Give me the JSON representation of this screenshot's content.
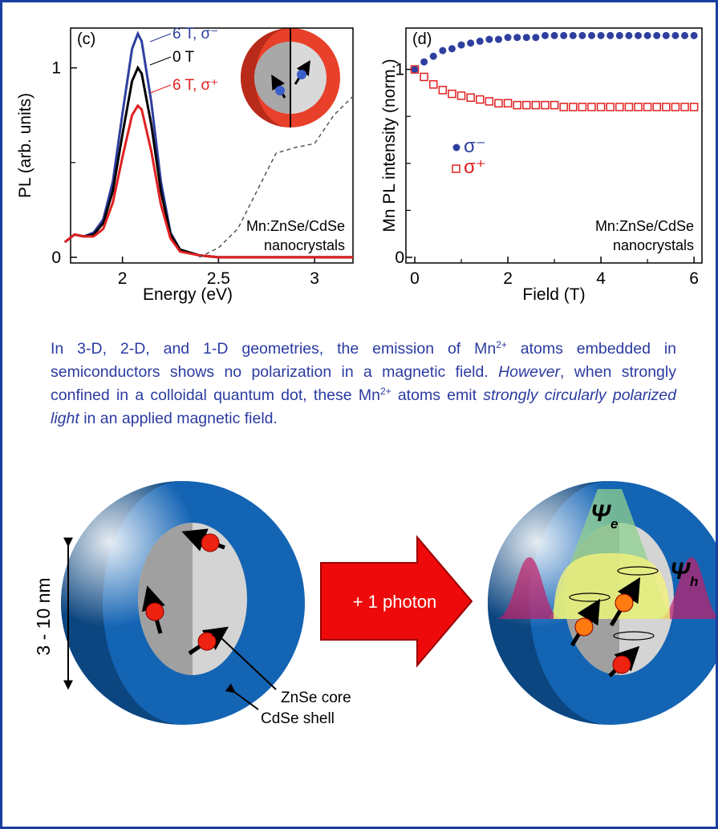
{
  "chart_data": [
    {
      "type": "line",
      "panel": "(c)",
      "x_label": "Energy (eV)",
      "y_label": "PL (arb. units)",
      "annotation": [
        "Mn:ZnSe/CdSe",
        "nanocrystals"
      ],
      "x": [
        1.7,
        1.75,
        1.8,
        1.85,
        1.9,
        1.95,
        2.0,
        2.05,
        2.08,
        2.1,
        2.15,
        2.2,
        2.25,
        2.3,
        2.4,
        2.5,
        2.6,
        2.7,
        2.8,
        2.9,
        3.0,
        3.1,
        3.2
      ],
      "series": [
        {
          "name": "6 T, σ⁻",
          "color": "#2e3f9e",
          "values": [
            0.08,
            0.12,
            0.11,
            0.13,
            0.2,
            0.4,
            0.76,
            1.1,
            1.18,
            1.14,
            0.82,
            0.4,
            0.13,
            0.04,
            0.01,
            0,
            0,
            0,
            0,
            0,
            0,
            0,
            0
          ]
        },
        {
          "name": "0 T",
          "color": "#000000",
          "values": [
            0.08,
            0.12,
            0.11,
            0.12,
            0.18,
            0.35,
            0.65,
            0.93,
            1.0,
            0.97,
            0.7,
            0.35,
            0.12,
            0.04,
            0.01,
            0,
            0,
            0,
            0,
            0,
            0,
            0,
            0
          ]
        },
        {
          "name": "6 T, σ⁺",
          "color": "#e02020",
          "values": [
            0.08,
            0.12,
            0.11,
            0.11,
            0.15,
            0.29,
            0.53,
            0.75,
            0.8,
            0.78,
            0.56,
            0.28,
            0.1,
            0.03,
            0.01,
            0,
            0,
            0,
            0,
            0,
            0,
            0,
            0
          ]
        },
        {
          "color": "#555555",
          "dashed": true,
          "values": [
            null,
            null,
            null,
            null,
            null,
            null,
            null,
            null,
            null,
            null,
            null,
            null,
            null,
            null,
            0,
            0.05,
            0.15,
            0.35,
            0.55,
            0.58,
            0.6,
            0.75,
            0.85
          ]
        }
      ],
      "xlim": [
        1.73,
        3.2
      ],
      "xticks": [
        2,
        2.5,
        3
      ],
      "ylim": [
        -0.03,
        1.21
      ],
      "yticks": [
        0,
        1
      ],
      "yminor": [
        0.5
      ]
    },
    {
      "type": "scatter",
      "panel": "(d)",
      "x_label": "Field (T)",
      "y_label": "Mn PL intensity (norm.)",
      "annotation": [
        "Mn:ZnSe/CdSe",
        "nanocrystals"
      ],
      "x": [
        0,
        0.2,
        0.4,
        0.6,
        0.8,
        1.0,
        1.2,
        1.4,
        1.6,
        1.8,
        2.0,
        2.2,
        2.4,
        2.6,
        2.8,
        3.0,
        3.2,
        3.4,
        3.6,
        3.8,
        4.0,
        4.2,
        4.4,
        4.6,
        4.8,
        5.0,
        5.2,
        5.4,
        5.6,
        5.8,
        6.0
      ],
      "series": [
        {
          "name": "σ⁻",
          "color": "#2e3f9e",
          "marker": "circle",
          "values": [
            1,
            1.04,
            1.07,
            1.1,
            1.11,
            1.13,
            1.14,
            1.15,
            1.16,
            1.16,
            1.17,
            1.17,
            1.17,
            1.17,
            1.18,
            1.18,
            1.18,
            1.18,
            1.18,
            1.18,
            1.18,
            1.18,
            1.18,
            1.18,
            1.18,
            1.18,
            1.18,
            1.18,
            1.18,
            1.18,
            1.18
          ]
        },
        {
          "name": "σ⁺",
          "color": "#e02020",
          "marker": "square",
          "values": [
            1,
            0.96,
            0.92,
            0.89,
            0.87,
            0.86,
            0.85,
            0.84,
            0.83,
            0.82,
            0.82,
            0.81,
            0.81,
            0.81,
            0.81,
            0.81,
            0.8,
            0.8,
            0.8,
            0.8,
            0.8,
            0.8,
            0.8,
            0.8,
            0.8,
            0.8,
            0.8,
            0.8,
            0.8,
            0.8,
            0.8
          ]
        }
      ],
      "xlim": [
        -0.19,
        6.17
      ],
      "xticks": [
        0,
        2,
        4,
        6
      ],
      "xminor": [
        1,
        3,
        5
      ],
      "ylim": [
        -0.03,
        1.22
      ],
      "yticks": [
        0,
        1
      ],
      "yminor": [
        0.25,
        0.5,
        0.75
      ]
    }
  ],
  "paragraph": [
    {
      "text": "In 3-D, 2-D, and 1-D geometries, the emission of Mn",
      "style": "normal"
    },
    {
      "text": "2+",
      "style": "sup"
    },
    {
      "text": " atoms embedded in semiconductors shows no polarization in a magnetic field. ",
      "style": "normal"
    },
    {
      "text": "However",
      "style": "italic"
    },
    {
      "text": ", when strongly confined in a colloidal quantum dot, these Mn",
      "style": "normal"
    },
    {
      "text": "2+",
      "style": "sup"
    },
    {
      "text": " atoms emit ",
      "style": "normal"
    },
    {
      "text": "strongly circularly polarized light",
      "style": "italic"
    },
    {
      "text": " in an applied magnetic field.",
      "style": "normal"
    }
  ],
  "diagram": {
    "size_label": "3 - 10 nm",
    "arrow_label": "+ 1 photon",
    "core_label": "ZnSe core",
    "shell_label": "CdSe shell",
    "electron": {
      "symbol": "Ψ",
      "subscript": "e"
    },
    "hole": {
      "symbol": "Ψ",
      "subscript": "h"
    }
  }
}
